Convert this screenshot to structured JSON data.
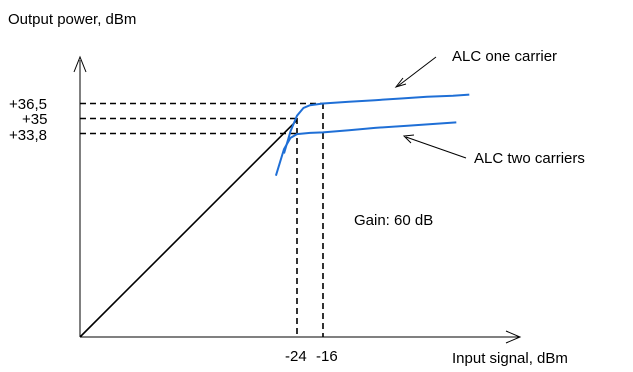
{
  "chart_data": {
    "type": "line",
    "title": "",
    "xlabel": "Input signal, dBm",
    "ylabel": "Output power, dBm",
    "x_ticks": [
      {
        "value": -24,
        "label": "-24"
      },
      {
        "value": -16,
        "label": "-16"
      }
    ],
    "y_ticks": [
      {
        "value": 36.5,
        "label": "+36,5"
      },
      {
        "value": 35,
        "label": "+35"
      },
      {
        "value": 33.8,
        "label": "+33,8"
      }
    ],
    "gain_text": "Gain: 60 dB",
    "series": [
      {
        "name": "ALC one carrier",
        "color": "#1f6fd6",
        "points": [
          [
            -28,
            32
          ],
          [
            -26,
            34
          ],
          [
            -24,
            35.4
          ],
          [
            -22,
            36.1
          ],
          [
            -20,
            36.35
          ],
          [
            -16,
            36.5
          ],
          [
            -8,
            36.65
          ],
          [
            0,
            36.8
          ],
          [
            8,
            36.95
          ],
          [
            16,
            37.1
          ],
          [
            24,
            37.2
          ],
          [
            29,
            37.3
          ]
        ]
      },
      {
        "name": "ALC two carriers",
        "color": "#1f6fd6",
        "points": [
          [
            -30.5,
            30
          ],
          [
            -28,
            32.4
          ],
          [
            -26,
            33.4
          ],
          [
            -24,
            33.75
          ],
          [
            -20,
            33.85
          ],
          [
            -16,
            33.9
          ],
          [
            -8,
            34.1
          ],
          [
            0,
            34.3
          ],
          [
            10,
            34.5
          ],
          [
            20,
            34.7
          ],
          [
            25,
            34.8
          ]
        ]
      }
    ],
    "linear_gain_line": {
      "color": "#000000",
      "points": [
        [
          -95,
          0
        ],
        [
          -24,
          35
        ]
      ]
    },
    "legend": "annotations with arrows, top-right"
  }
}
